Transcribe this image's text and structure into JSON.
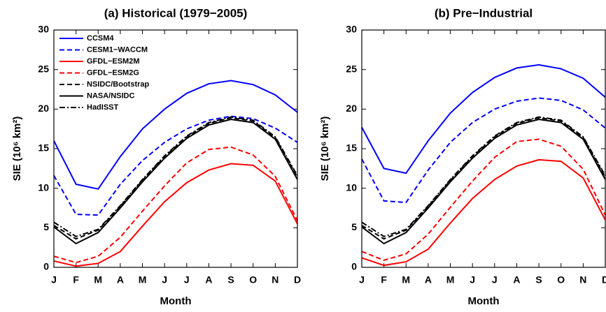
{
  "chart_data": [
    {
      "type": "line",
      "title": "(a) Historical (1979−2005)",
      "x_label": "Month",
      "y_label": "SIE (10⁶ km²)",
      "categories": [
        "J",
        "F",
        "M",
        "A",
        "M",
        "J",
        "J",
        "A",
        "S",
        "O",
        "N",
        "D"
      ],
      "ylim": [
        0,
        30
      ],
      "yticks": [
        0,
        5,
        10,
        15,
        20,
        25,
        30
      ],
      "legend": "upper left",
      "series": [
        {
          "name": "CCSM4",
          "color": "#0000ff",
          "dash": "solid",
          "values": [
            16.0,
            10.5,
            9.9,
            14.0,
            17.5,
            20.0,
            22.0,
            23.2,
            23.6,
            23.1,
            21.8,
            19.6
          ]
        },
        {
          "name": "CESM1−WACCM",
          "color": "#0000ff",
          "dash": "dashed",
          "values": [
            11.6,
            6.7,
            6.6,
            10.5,
            13.5,
            15.8,
            17.5,
            18.6,
            19.1,
            18.8,
            17.6,
            15.8
          ]
        },
        {
          "name": "GFDL−ESM2M",
          "color": "#ff0000",
          "dash": "solid",
          "values": [
            0.8,
            0.15,
            0.5,
            2.0,
            5.2,
            8.3,
            10.7,
            12.3,
            13.1,
            12.9,
            10.9,
            5.5
          ]
        },
        {
          "name": "GFDL−ESM2G",
          "color": "#ff0000",
          "dash": "dashed",
          "values": [
            1.4,
            0.6,
            1.4,
            3.8,
            7.1,
            10.3,
            13.2,
            14.9,
            15.2,
            14.2,
            11.5,
            5.9
          ]
        },
        {
          "name": "NSIDC/Bootstrap",
          "color": "#000000",
          "dash": "dashed",
          "values": [
            5.3,
            3.6,
            4.7,
            7.7,
            11.0,
            14.0,
            16.5,
            18.2,
            18.9,
            18.5,
            16.4,
            11.4
          ]
        },
        {
          "name": "NASA/NSIDC",
          "color": "#000000",
          "dash": "solid",
          "values": [
            5.1,
            3.0,
            4.4,
            7.5,
            10.8,
            13.8,
            16.3,
            18.0,
            18.7,
            18.3,
            16.2,
            11.1
          ]
        },
        {
          "name": "HadISST",
          "color": "#000000",
          "dash": "dashdot",
          "values": [
            5.7,
            3.9,
            4.8,
            7.8,
            11.1,
            14.1,
            16.6,
            18.3,
            19.0,
            18.6,
            16.5,
            11.6
          ]
        }
      ]
    },
    {
      "type": "line",
      "title": "(b) Pre−Industrial",
      "x_label": "Month",
      "y_label": "SIE (10⁶ km²)",
      "categories": [
        "J",
        "F",
        "M",
        "A",
        "M",
        "J",
        "J",
        "A",
        "S",
        "O",
        "N",
        "D"
      ],
      "ylim": [
        0,
        30
      ],
      "yticks": [
        0,
        5,
        10,
        15,
        20,
        25,
        30
      ],
      "series": [
        {
          "color": "#0000ff",
          "dash": "solid",
          "values": [
            17.7,
            12.5,
            11.9,
            16.0,
            19.5,
            22.1,
            24.0,
            25.2,
            25.6,
            25.1,
            23.9,
            21.5
          ]
        },
        {
          "color": "#0000ff",
          "dash": "dashed",
          "values": [
            13.7,
            8.4,
            8.2,
            12.3,
            15.8,
            18.3,
            20.0,
            21.0,
            21.4,
            21.1,
            19.9,
            17.6
          ]
        },
        {
          "color": "#ff0000",
          "dash": "solid",
          "values": [
            1.2,
            0.25,
            0.7,
            2.3,
            5.6,
            8.7,
            11.1,
            12.8,
            13.6,
            13.4,
            11.3,
            6.0
          ]
        },
        {
          "color": "#ff0000",
          "dash": "dashed",
          "values": [
            2.0,
            0.9,
            1.7,
            4.2,
            7.6,
            10.9,
            13.9,
            15.9,
            16.2,
            15.3,
            12.4,
            6.6
          ]
        },
        {
          "color": "#000000",
          "dash": "dashed",
          "values": [
            5.3,
            3.6,
            4.7,
            7.7,
            11.0,
            14.0,
            16.5,
            18.2,
            18.9,
            18.5,
            16.4,
            11.4
          ]
        },
        {
          "color": "#000000",
          "dash": "solid",
          "values": [
            5.1,
            3.0,
            4.4,
            7.5,
            10.8,
            13.8,
            16.3,
            18.0,
            18.7,
            18.3,
            16.2,
            11.1
          ]
        },
        {
          "color": "#000000",
          "dash": "dashdot",
          "values": [
            5.7,
            3.9,
            4.8,
            7.8,
            11.1,
            14.1,
            16.6,
            18.3,
            19.0,
            18.6,
            16.5,
            11.6
          ]
        }
      ]
    }
  ]
}
